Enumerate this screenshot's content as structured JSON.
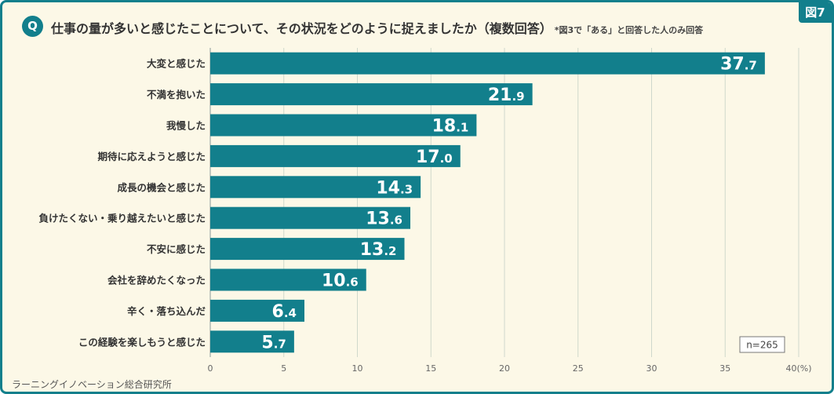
{
  "figure_label": "図7",
  "question_badge": "Q",
  "title": "仕事の量が多いと感じたことについて、その状況をどのように捉えましたか（複数回答）",
  "title_note": "*図3で「ある」と回答した人のみ回答",
  "source": "ラーニングイノベーション総合研究所",
  "colors": {
    "bar": "#127f8c",
    "frame": "#127f8c",
    "background": "#fcf8e7",
    "grid": "#cfd8cc"
  },
  "chart_data": {
    "type": "bar",
    "orientation": "horizontal",
    "categories": [
      "大変と感じた",
      "不満を抱いた",
      "我慢した",
      "期待に応えようと感じた",
      "成長の機会と感じた",
      "負けたくない・乗り越えたいと感じた",
      "不安に感じた",
      "会社を辞めたくなった",
      "辛く・落ち込んだ",
      "この経験を楽しもうと感じた"
    ],
    "values": [
      37.7,
      21.9,
      18.1,
      17.0,
      14.3,
      13.6,
      13.2,
      10.6,
      6.4,
      5.7
    ],
    "xlim": [
      0,
      40
    ],
    "xticks": [
      0,
      5,
      10,
      15,
      20,
      25,
      30,
      35,
      40
    ],
    "unit_label": "(%)",
    "sample_size": "n=265",
    "grid": true
  }
}
